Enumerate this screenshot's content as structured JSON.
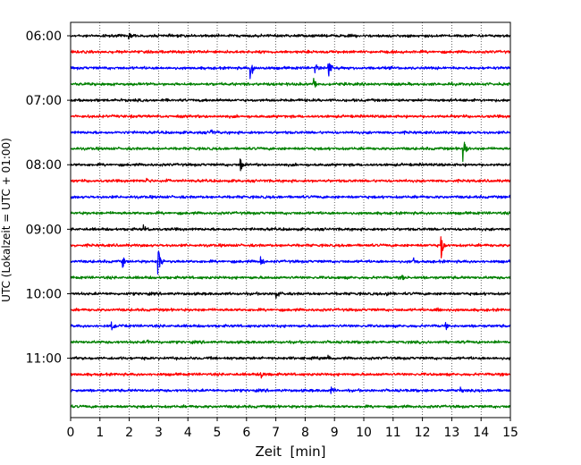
{
  "chart_data": {
    "type": "line",
    "title": "",
    "xlabel": "Zeit  [min]",
    "ylabel": "UTC (Lokalzeit = UTC + 01:00)",
    "xlim": [
      0,
      15
    ],
    "x_ticks": [
      0,
      1,
      2,
      3,
      4,
      5,
      6,
      7,
      8,
      9,
      10,
      11,
      12,
      13,
      14,
      15
    ],
    "y_tick_labels": [
      "06:00",
      "07:00",
      "08:00",
      "09:00",
      "10:00",
      "11:00"
    ],
    "grid": "vertical dotted",
    "line_colors": [
      "#000000",
      "#ff0000",
      "#0000ff",
      "#008000"
    ],
    "traces": [
      {
        "label": "06:00",
        "color": "#000000",
        "events": [
          {
            "minute": 2.0,
            "amp": 0.3
          }
        ]
      },
      {
        "label": "06:15",
        "color": "#ff0000",
        "events": []
      },
      {
        "label": "06:30",
        "color": "#0000ff",
        "events": [
          {
            "minute": 6.15,
            "amp": 1.0
          },
          {
            "minute": 8.8,
            "amp": 0.9
          },
          {
            "minute": 8.35,
            "amp": 0.4
          }
        ]
      },
      {
        "label": "06:45",
        "color": "#008000",
        "events": [
          {
            "minute": 8.3,
            "amp": 0.5
          }
        ]
      },
      {
        "label": "07:00",
        "color": "#000000",
        "events": []
      },
      {
        "label": "07:15",
        "color": "#ff0000",
        "events": []
      },
      {
        "label": "07:30",
        "color": "#0000ff",
        "events": [
          {
            "minute": 4.8,
            "amp": 0.3
          }
        ]
      },
      {
        "label": "07:45",
        "color": "#008000",
        "events": [
          {
            "minute": 13.4,
            "amp": 1.3
          }
        ]
      },
      {
        "label": "08:00",
        "color": "#000000",
        "events": [
          {
            "minute": 5.8,
            "amp": 0.6
          }
        ]
      },
      {
        "label": "08:15",
        "color": "#ff0000",
        "events": [
          {
            "minute": 2.6,
            "amp": 0.3
          },
          {
            "minute": 3.3,
            "amp": 0.3
          }
        ]
      },
      {
        "label": "08:30",
        "color": "#0000ff",
        "events": []
      },
      {
        "label": "08:45",
        "color": "#008000",
        "events": []
      },
      {
        "label": "09:00",
        "color": "#000000",
        "events": [
          {
            "minute": 2.5,
            "amp": 0.3
          }
        ]
      },
      {
        "label": "09:15",
        "color": "#ff0000",
        "events": [
          {
            "minute": 12.65,
            "amp": 1.2
          }
        ]
      },
      {
        "label": "09:30",
        "color": "#0000ff",
        "events": [
          {
            "minute": 1.8,
            "amp": 0.5
          },
          {
            "minute": 3.0,
            "amp": 1.1
          },
          {
            "minute": 6.5,
            "amp": 0.4
          },
          {
            "minute": 11.7,
            "amp": 0.3
          }
        ]
      },
      {
        "label": "09:45",
        "color": "#008000",
        "events": [
          {
            "minute": 11.3,
            "amp": 0.3
          }
        ]
      },
      {
        "label": "10:00",
        "color": "#000000",
        "events": [
          {
            "minute": 7.0,
            "amp": 0.5
          },
          {
            "minute": 10.8,
            "amp": 0.3
          }
        ]
      },
      {
        "label": "10:15",
        "color": "#ff0000",
        "events": [
          {
            "minute": 12.5,
            "amp": 0.3
          }
        ]
      },
      {
        "label": "10:30",
        "color": "#0000ff",
        "events": [
          {
            "minute": 1.4,
            "amp": 0.4
          },
          {
            "minute": 12.8,
            "amp": 0.3
          }
        ]
      },
      {
        "label": "10:45",
        "color": "#008000",
        "events": [
          {
            "minute": 2.6,
            "amp": 0.3
          }
        ]
      },
      {
        "label": "11:00",
        "color": "#000000",
        "events": [
          {
            "minute": 8.8,
            "amp": 0.3
          }
        ]
      },
      {
        "label": "11:15",
        "color": "#ff0000",
        "events": [
          {
            "minute": 6.5,
            "amp": 0.3
          }
        ]
      },
      {
        "label": "11:30",
        "color": "#0000ff",
        "events": [
          {
            "minute": 8.9,
            "amp": 0.3
          },
          {
            "minute": 13.3,
            "amp": 0.3
          }
        ]
      },
      {
        "label": "11:45",
        "color": "#008000",
        "events": []
      }
    ]
  }
}
